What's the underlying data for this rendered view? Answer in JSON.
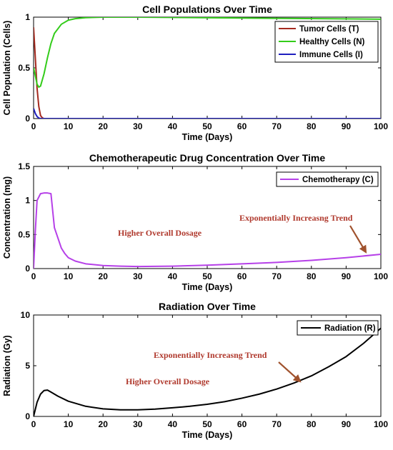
{
  "chart_data": [
    {
      "type": "line",
      "title": "Cell Populations Over Time",
      "xlabel": "Time (Days)",
      "ylabel": "Cell Population (Cells)",
      "xlim": [
        0,
        100
      ],
      "ylim": [
        0,
        1
      ],
      "xticks": [
        "0",
        "10",
        "20",
        "30",
        "40",
        "50",
        "60",
        "70",
        "80",
        "90",
        "100"
      ],
      "yticks": [
        "0",
        "0.5",
        "1"
      ],
      "legend_position": "top-right",
      "series": [
        {
          "name": "Tumor Cells (T)",
          "color": "#a52a1f",
          "x": [
            0,
            0.5,
            1,
            1.5,
            2,
            2.5,
            3,
            4,
            100
          ],
          "values": [
            0.9,
            0.6,
            0.3,
            0.12,
            0.03,
            0.008,
            0.0,
            0.0,
            0.0
          ]
        },
        {
          "name": "Healthy Cells (N)",
          "color": "#33cc1a",
          "x": [
            0,
            0.5,
            1,
            1.5,
            2,
            3,
            4,
            5,
            6,
            8,
            10,
            12,
            15,
            20,
            30,
            100
          ],
          "values": [
            0.5,
            0.42,
            0.34,
            0.31,
            0.32,
            0.44,
            0.6,
            0.74,
            0.84,
            0.93,
            0.97,
            0.985,
            0.995,
            1.0,
            1.0,
            0.98
          ]
        },
        {
          "name": "Immune Cells (I)",
          "color": "#1f1fbf",
          "x": [
            0,
            0.5,
            1,
            1.5,
            2,
            100
          ],
          "values": [
            0.1,
            0.05,
            0.02,
            0.005,
            0.0,
            0.0
          ]
        }
      ]
    },
    {
      "type": "line",
      "title": "Chemotherapeutic Drug Concentration Over Time",
      "xlabel": "Time (Days)",
      "ylabel": "Concentration (mg)",
      "xlim": [
        0,
        100
      ],
      "ylim": [
        0,
        1.5
      ],
      "xticks": [
        "0",
        "10",
        "20",
        "30",
        "40",
        "50",
        "60",
        "70",
        "80",
        "90",
        "100"
      ],
      "yticks": [
        "0",
        "0.5",
        "1",
        "1.5"
      ],
      "legend_position": "top-right",
      "series": [
        {
          "name": "Chemotherapy (C)",
          "color": "#b640e8",
          "x": [
            0,
            0.5,
            1,
            2,
            3,
            4,
            5,
            6,
            7,
            8,
            9,
            10,
            12,
            15,
            20,
            25,
            30,
            40,
            50,
            60,
            70,
            80,
            90,
            100
          ],
          "values": [
            0,
            0.55,
            1.0,
            1.1,
            1.11,
            1.11,
            1.1,
            0.6,
            0.45,
            0.3,
            0.22,
            0.16,
            0.11,
            0.07,
            0.045,
            0.035,
            0.03,
            0.035,
            0.05,
            0.07,
            0.09,
            0.12,
            0.16,
            0.21
          ]
        }
      ],
      "annotations": [
        {
          "text": "Higher Overall Dosage"
        },
        {
          "text": "Exponentially Increasng Trend"
        }
      ]
    },
    {
      "type": "line",
      "title": "Radiation Over Time",
      "xlabel": "Time (Days)",
      "ylabel": "Radiation (Gy)",
      "xlim": [
        0,
        100
      ],
      "ylim": [
        0,
        10
      ],
      "xticks": [
        "0",
        "10",
        "20",
        "30",
        "40",
        "50",
        "60",
        "70",
        "80",
        "90",
        "100"
      ],
      "yticks": [
        "0",
        "5",
        "10"
      ],
      "legend_position": "top-right",
      "series": [
        {
          "name": "Radiation (R)",
          "color": "#000000",
          "x": [
            0,
            1,
            2,
            3,
            4,
            5,
            7,
            10,
            15,
            20,
            25,
            30,
            35,
            40,
            45,
            50,
            55,
            60,
            65,
            70,
            75,
            80,
            85,
            90,
            95,
            100
          ],
          "values": [
            0,
            1.4,
            2.2,
            2.55,
            2.6,
            2.4,
            2.0,
            1.5,
            1.0,
            0.75,
            0.65,
            0.65,
            0.72,
            0.85,
            1.0,
            1.2,
            1.45,
            1.8,
            2.2,
            2.7,
            3.3,
            4.0,
            4.9,
            5.9,
            7.2,
            8.7
          ]
        }
      ],
      "annotations": [
        {
          "text": "Exponentially Increasng Trend"
        },
        {
          "text": "Higher Overall Dosage"
        }
      ]
    }
  ]
}
